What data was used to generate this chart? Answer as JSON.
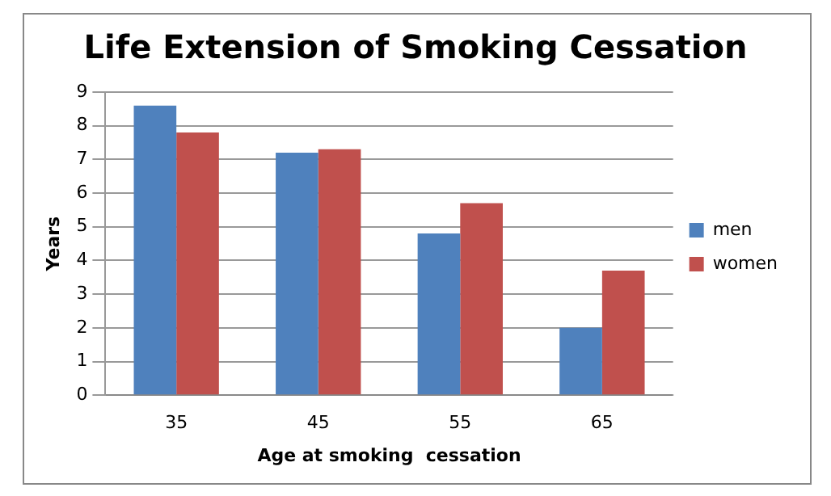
{
  "chart_data": {
    "type": "bar",
    "title": "Life Extension of Smoking Cessation",
    "xlabel": "Age at smoking  cessation",
    "ylabel": "Years",
    "categories": [
      "35",
      "45",
      "55",
      "65"
    ],
    "series": [
      {
        "name": "men",
        "color": "#4f81bd",
        "values": [
          8.6,
          7.2,
          4.8,
          2.0
        ]
      },
      {
        "name": "women",
        "color": "#c0504d",
        "values": [
          7.8,
          7.3,
          5.7,
          3.7
        ]
      }
    ],
    "ylim": [
      0,
      9
    ],
    "yticks": [
      0,
      1,
      2,
      3,
      4,
      5,
      6,
      7,
      8,
      9
    ],
    "grid": "y",
    "legend": "right"
  }
}
